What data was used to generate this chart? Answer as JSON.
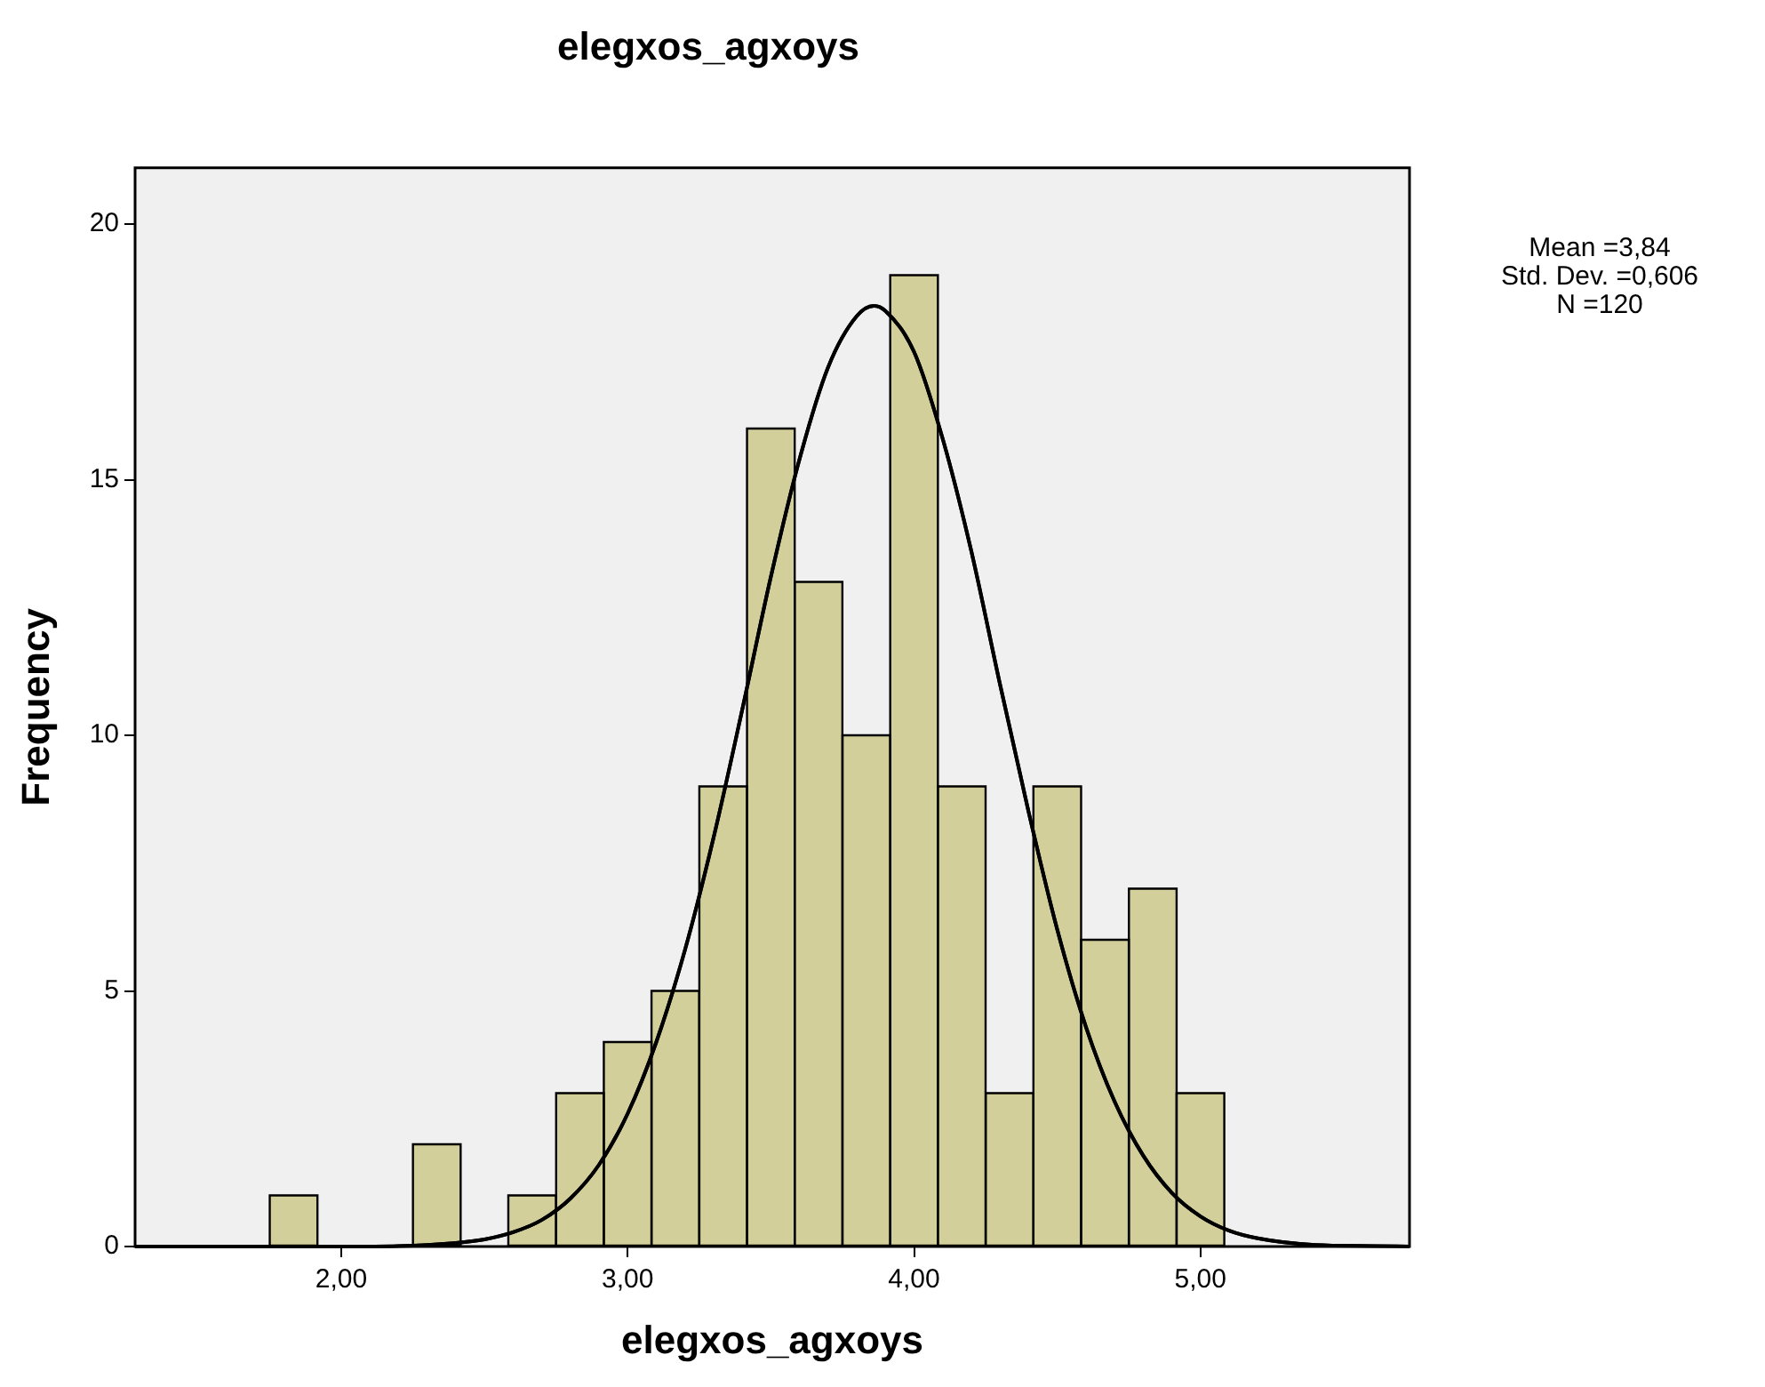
{
  "chart_data": {
    "type": "histogram",
    "title": "elegxos_agxoys",
    "xlabel": "elegxos_agxoys",
    "ylabel": "Frequency",
    "bins": [
      1.75,
      1.917,
      2.083,
      2.25,
      2.417,
      2.583,
      2.75,
      2.917,
      3.083,
      3.25,
      3.417,
      3.583,
      3.75,
      3.917,
      4.083,
      4.25,
      4.417,
      4.583,
      4.75,
      4.917,
      5.083
    ],
    "values": [
      1,
      0,
      0,
      2,
      0,
      1,
      3,
      4,
      5,
      9,
      16,
      13,
      10,
      19,
      9,
      3,
      9,
      6,
      7,
      3
    ],
    "color": "#d3cf9a",
    "series": [
      {
        "type": "line",
        "color": "#000000",
        "x": [
          1.28,
          1.6,
          2.0,
          2.2,
          2.4,
          2.5,
          2.6,
          2.7,
          2.8,
          2.9,
          3.0,
          3.1,
          3.2,
          3.3,
          3.4,
          3.5,
          3.6,
          3.7,
          3.8,
          3.86,
          3.9,
          4.0,
          4.1,
          4.2,
          4.3,
          4.4,
          4.5,
          4.6,
          4.7,
          4.8,
          4.9,
          5.0,
          5.1,
          5.2,
          5.4,
          5.6,
          5.73
        ],
        "values": [
          0,
          0,
          0,
          0.01,
          0.07,
          0.14,
          0.28,
          0.52,
          0.94,
          1.6,
          2.6,
          4.0,
          5.8,
          8.0,
          10.5,
          13.1,
          15.4,
          17.2,
          18.2,
          18.4,
          18.3,
          17.5,
          15.8,
          13.6,
          11.0,
          8.5,
          6.2,
          4.3,
          2.84,
          1.78,
          1.05,
          0.59,
          0.31,
          0.16,
          0.03,
          0.01,
          0
        ]
      }
    ],
    "xlim": [
      1.28,
      5.73
    ],
    "xticks": [
      {
        "value": 2,
        "label": "2,00"
      },
      {
        "value": 3,
        "label": "3,00"
      },
      {
        "value": 4,
        "label": "4,00"
      },
      {
        "value": 5,
        "label": "5,00"
      }
    ],
    "ylim": [
      0,
      21.1
    ],
    "yticks": [
      0,
      5,
      10,
      15,
      20
    ],
    "annotations": [
      "Mean =3,84",
      "Std. Dev. =0,606",
      "N =120"
    ]
  }
}
